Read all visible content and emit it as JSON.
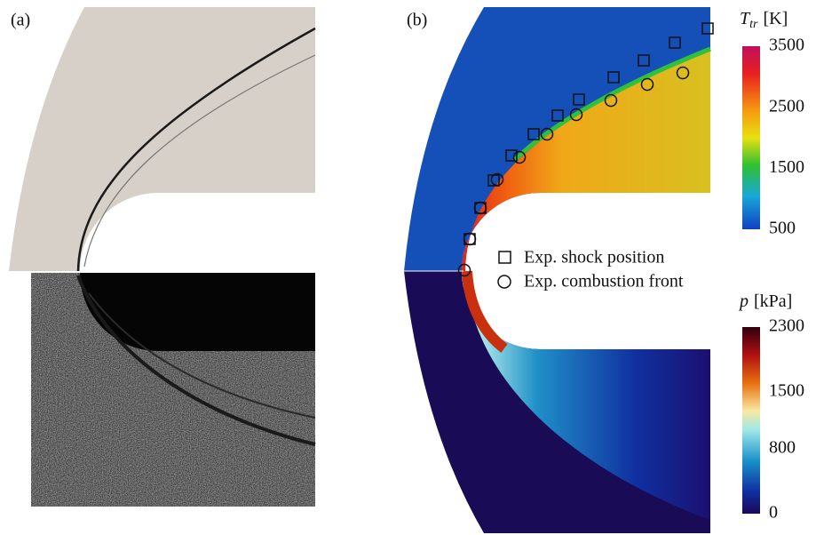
{
  "panels": {
    "a": {
      "label": "(a)"
    },
    "b": {
      "label": "(b)"
    }
  },
  "legend": {
    "items": [
      "Exp. shock position",
      "Exp. combustion front"
    ]
  },
  "colorbars": [
    {
      "symbol": "T",
      "subscript": "tr",
      "unit": "[K]",
      "range": [
        500,
        3500
      ],
      "ticks": [
        3500,
        2500,
        1500,
        500
      ]
    },
    {
      "symbol": "p",
      "unit": "[kPa]",
      "range": [
        0,
        2300
      ],
      "ticks": [
        2300,
        1500,
        800,
        0
      ]
    }
  ]
}
